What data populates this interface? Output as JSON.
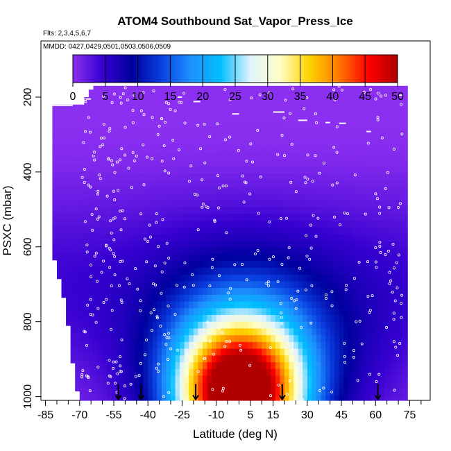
{
  "chart_data": {
    "type": "heatmap",
    "title": "ATOM4 Southbound Sat_Vapor_Press_Ice",
    "flights_label": "Flts: 2,3,4,5,6,7",
    "dates_label": "MMDD: 0427,0429,0501,0503,0506,0509",
    "xlabel": "Latitude (deg N)",
    "ylabel": "PSXC (mbar)",
    "xlim": [
      -87,
      84
    ],
    "ylim": [
      1010,
      50
    ],
    "y_reversed": true,
    "x_ticks": [
      -85,
      -70,
      -55,
      -40,
      -25,
      -10,
      5,
      15,
      30,
      45,
      60,
      75
    ],
    "x_tick_labels": [
      "-85",
      "-70",
      "-55",
      "-40",
      "-25",
      "-10",
      "5",
      "15",
      "30",
      "45",
      "60",
      "75"
    ],
    "y_ticks": [
      200,
      400,
      600,
      800,
      1000
    ],
    "y_tick_labels": [
      "200",
      "400",
      "600",
      "800",
      "1000"
    ],
    "colorbar": {
      "min": 0,
      "max": 50,
      "ticks": [
        0,
        5,
        10,
        15,
        20,
        25,
        30,
        35,
        40,
        45,
        50
      ],
      "tick_labels": [
        "0",
        "5",
        "10",
        "15",
        "20",
        "25",
        "30",
        "35",
        "40",
        "45",
        "50"
      ],
      "colors": [
        "#8b2ff0",
        "#3600d0",
        "#00009e",
        "#0a3fe0",
        "#1e90ff",
        "#00bfff",
        "#e0f2ff",
        "#ffffc8",
        "#ffd400",
        "#ff7a00",
        "#ff0000",
        "#b00000"
      ]
    },
    "data_extent": {
      "lat_min": -82,
      "lat_max": 73,
      "p_top_by_lat": [
        [
          -82,
          220
        ],
        [
          -69,
          220
        ],
        [
          -66,
          190
        ],
        [
          -64,
          170
        ],
        [
          72,
          170
        ]
      ],
      "p_bottom_by_lat": [
        [
          -82,
          610
        ],
        [
          -76,
          760
        ],
        [
          -72,
          960
        ],
        [
          -70,
          1010
        ],
        [
          73,
          1010
        ]
      ]
    },
    "field_model": "value = 48*exp(-((p-1000)/190)^2 - ((lat-0)/27)^2) + 14*exp(-((p-900)/260)^2 - ((lat-5)/45)^2), lower in the upper troposphere",
    "arrow_latitudes": [
      -53,
      -43,
      -19,
      19,
      61
    ],
    "arrow_pressure": 1000,
    "sample_marker": "small open white circles along flight tracks"
  }
}
